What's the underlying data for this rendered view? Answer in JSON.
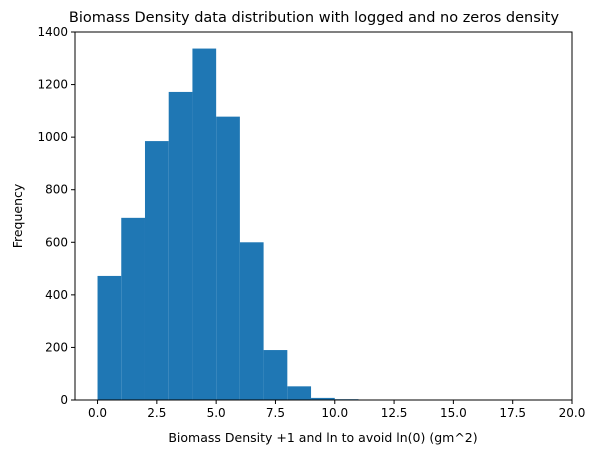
{
  "chart_data": {
    "type": "bar",
    "title": "Biomass Density data distribution with logged and no zeros density",
    "xlabel": "Biomass Density +1 and ln to avoid ln(0) (gm^2)",
    "ylabel": "Frequency",
    "xlim": [
      -0.95,
      20.0
    ],
    "ylim": [
      0,
      1400
    ],
    "x_ticks": [
      0.0,
      2.5,
      5.0,
      7.5,
      10.0,
      12.5,
      15.0,
      17.5,
      20.0
    ],
    "x_tick_labels": [
      "0.0",
      "2.5",
      "5.0",
      "7.5",
      "10.0",
      "12.5",
      "15.0",
      "17.5",
      "20.0"
    ],
    "y_ticks": [
      0,
      200,
      400,
      600,
      800,
      1000,
      1200,
      1400
    ],
    "y_tick_labels": [
      "0",
      "200",
      "400",
      "600",
      "800",
      "1000",
      "1200",
      "1400"
    ],
    "bin_edges": [
      0,
      1,
      2,
      3,
      4,
      5,
      6,
      7,
      8,
      9,
      10,
      11
    ],
    "values": [
      472,
      693,
      985,
      1172,
      1337,
      1078,
      600,
      190,
      52,
      8,
      3
    ],
    "bar_color": "#1f77b4",
    "grid": false
  }
}
